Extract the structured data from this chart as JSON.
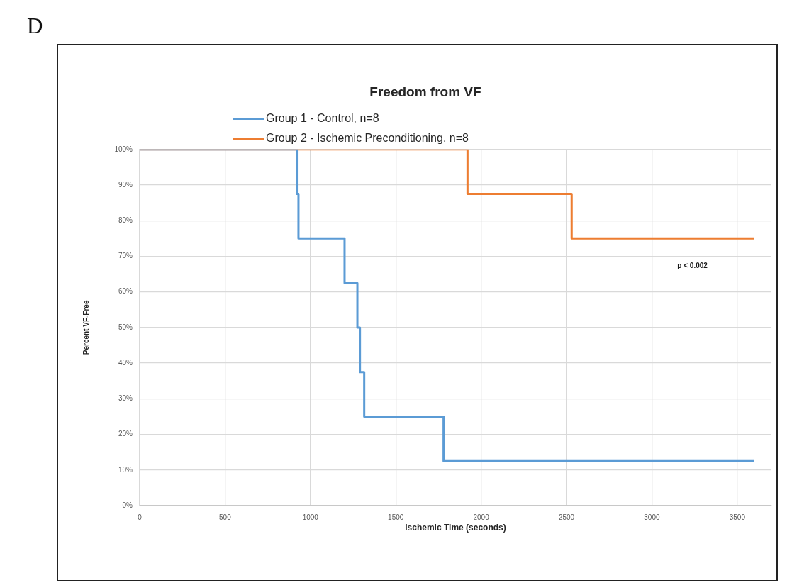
{
  "chart_data": {
    "type": "step",
    "title": "Freedom from VF",
    "xlabel": "Ischemic Time (seconds)",
    "ylabel": "Percent VF-Free",
    "annotations": [
      "D",
      "p < 0.002"
    ],
    "series": [
      {
        "name": "Group 1 - Control, n=8",
        "color": "#5b9bd5",
        "x": [
          0,
          920,
          930,
          1200,
          1275,
          1290,
          1315,
          1780,
          3600
        ],
        "values": [
          100,
          87.5,
          75,
          62.5,
          50,
          37.5,
          25,
          12.5,
          12.5
        ]
      },
      {
        "name": "Group 2 - Ischemic Preconditioning, n=8",
        "color": "#ed7d31",
        "x": [
          0,
          1920,
          2530,
          3600
        ],
        "values": [
          100,
          87.5,
          75,
          75
        ]
      }
    ],
    "xlim": [
      0,
      3700
    ],
    "xticks": [
      0,
      500,
      1000,
      1500,
      2000,
      2500,
      3000,
      3500
    ],
    "ylim": [
      0,
      100
    ],
    "yticks": [
      {
        "value": 0,
        "label": "0%"
      },
      {
        "value": 10,
        "label": "10%"
      },
      {
        "value": 20,
        "label": "20%"
      },
      {
        "value": 30,
        "label": "30%"
      },
      {
        "value": 40,
        "label": "40%"
      },
      {
        "value": 50,
        "label": "50%"
      },
      {
        "value": 60,
        "label": "60%"
      },
      {
        "value": 70,
        "label": "70%"
      },
      {
        "value": 80,
        "label": "80%"
      },
      {
        "value": 90,
        "label": "90%"
      },
      {
        "value": 100,
        "label": "100%"
      }
    ],
    "grid": true,
    "legend": "top",
    "marker": "none",
    "line_style": "solid"
  }
}
